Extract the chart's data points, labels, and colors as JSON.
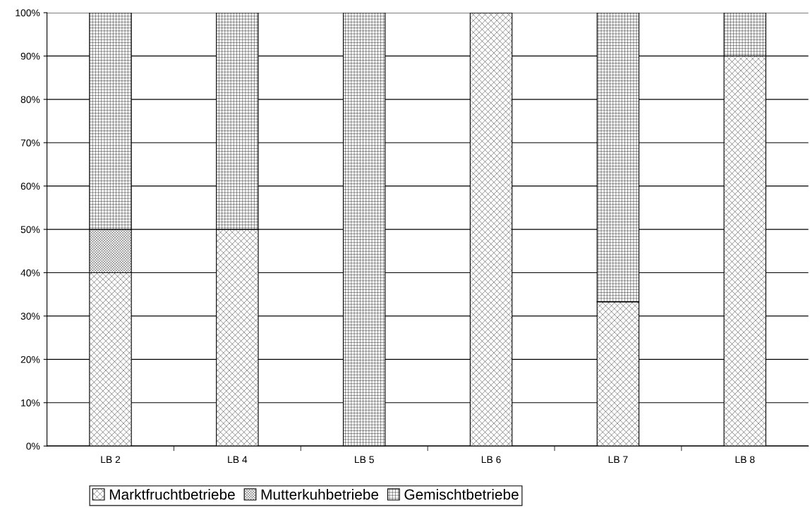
{
  "chart_data": {
    "type": "bar",
    "stacked": true,
    "categories": [
      "LB 2",
      "LB 4",
      "LB 5",
      "LB 6",
      "LB 7",
      "LB 8"
    ],
    "series": [
      {
        "name": "Marktfruchtbetriebe",
        "color": "#000000",
        "values": [
          40,
          50,
          0,
          100,
          33.3,
          90
        ]
      },
      {
        "name": "Mutterkuhbetriebe",
        "color": "#000000",
        "values": [
          10,
          0,
          0,
          0,
          0,
          0
        ]
      },
      {
        "name": "Gemischtbetriebe",
        "color": "#000000",
        "values": [
          50,
          50,
          100,
          0,
          66.7,
          10
        ]
      }
    ],
    "ylim": [
      0,
      100
    ],
    "yticks": [
      {
        "value": 0,
        "label": "0%"
      },
      {
        "value": 10,
        "label": "10%"
      },
      {
        "value": 20,
        "label": "20%"
      },
      {
        "value": 30,
        "label": "30%"
      },
      {
        "value": 40,
        "label": "40%"
      },
      {
        "value": 50,
        "label": "50%"
      },
      {
        "value": 60,
        "label": "60%"
      },
      {
        "value": 70,
        "label": "70%"
      },
      {
        "value": 80,
        "label": "80%"
      },
      {
        "value": 90,
        "label": "90%"
      },
      {
        "value": 100,
        "label": "100%"
      }
    ],
    "grid": "y",
    "legend": "bottom"
  }
}
